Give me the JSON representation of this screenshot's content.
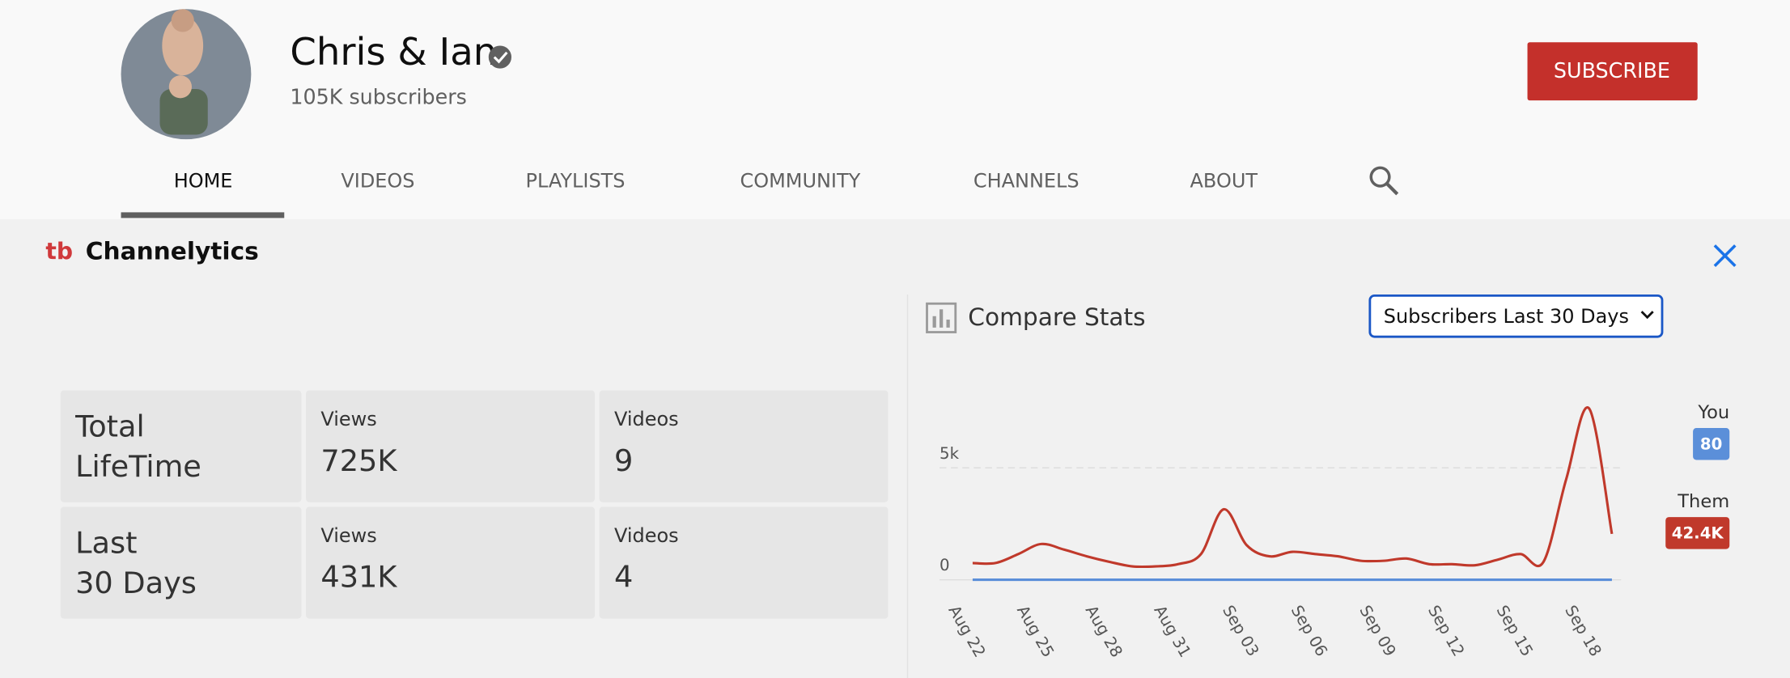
{
  "header": {
    "channel_name": "Chris & Ian",
    "subscribers": "105K subscribers",
    "subscribe": "SUBSCRIBE"
  },
  "tabs": [
    "HOME",
    "VIDEOS",
    "PLAYLISTS",
    "COMMUNITY",
    "CHANNELS",
    "ABOUT"
  ],
  "panel": {
    "title": "Channelytics",
    "stats": [
      {
        "label_lines": [
          "Total",
          "LifeTime"
        ],
        "cells": [
          {
            "label": "Views",
            "value": "725K"
          },
          {
            "label": "Videos",
            "value": "9"
          }
        ]
      },
      {
        "label_lines": [
          "Last",
          "30 Days"
        ],
        "cells": [
          {
            "label": "Views",
            "value": "431K"
          },
          {
            "label": "Videos",
            "value": "4"
          }
        ]
      }
    ],
    "compare_title": "Compare Stats",
    "select": "Subscribers Last 30 Days"
  },
  "chart_data": {
    "type": "line",
    "categories": [
      "Aug 22",
      null,
      null,
      "Aug 25",
      null,
      null,
      "Aug 28",
      null,
      null,
      "Aug 31",
      null,
      null,
      "Sep 03",
      null,
      null,
      "Sep 06",
      null,
      null,
      "Sep 09",
      null,
      null,
      "Sep 12",
      null,
      null,
      "Sep 15",
      null,
      null,
      "Sep 18",
      null
    ],
    "series": [
      {
        "name": "You",
        "color": "#5b8fd9",
        "total_label": "80",
        "values": [
          3,
          3,
          3,
          3,
          3,
          3,
          3,
          3,
          3,
          3,
          3,
          3,
          3,
          3,
          3,
          3,
          3,
          3,
          3,
          3,
          3,
          3,
          3,
          3,
          3,
          3,
          3,
          3,
          3
        ]
      },
      {
        "name": "Them",
        "color": "#c0392b",
        "total_label": "42.4K",
        "values": [
          750,
          750,
          1150,
          1600,
          1350,
          1050,
          800,
          600,
          600,
          700,
          1150,
          3150,
          1550,
          1050,
          1250,
          1150,
          1050,
          850,
          850,
          950,
          700,
          700,
          650,
          900,
          1150,
          800,
          4500,
          7650,
          2050
        ]
      }
    ],
    "ylim": [
      0,
      8000
    ],
    "yticks": [
      0,
      {
        "value": 5000,
        "label": "5k"
      }
    ],
    "grid": true,
    "legend": "right"
  }
}
